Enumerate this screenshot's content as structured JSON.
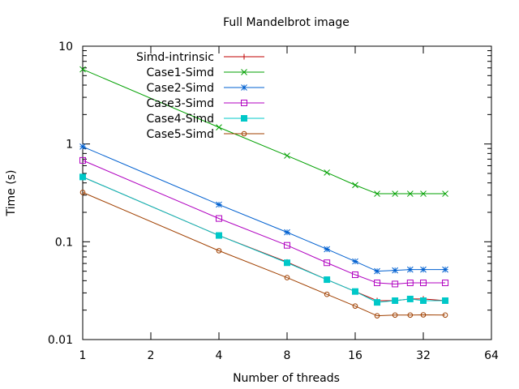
{
  "chart_data": {
    "type": "line",
    "title": "Full Mandelbrot image",
    "xlabel": "Number of threads",
    "ylabel": "Time (s)",
    "x_scale": "log2",
    "y_scale": "log10",
    "xlim": [
      1,
      64
    ],
    "ylim": [
      0.01,
      10
    ],
    "x_ticks": [
      1,
      2,
      4,
      8,
      16,
      32,
      64
    ],
    "x_tick_labels": [
      "1",
      "2",
      "4",
      "8",
      "16",
      "32",
      "64"
    ],
    "y_ticks": [
      0.01,
      0.1,
      1,
      10
    ],
    "y_tick_labels": [
      "0.01",
      "0.1",
      "1",
      "10"
    ],
    "legend_position": "top-left",
    "grid": false,
    "x": [
      1,
      4,
      8,
      12,
      16,
      20,
      24,
      28,
      32,
      40
    ],
    "series": [
      {
        "name": "Simd-intrinsic",
        "color": "#c00000",
        "marker": "plus",
        "values": [
          0.46,
          0.116,
          0.062,
          0.041,
          0.031,
          0.025,
          0.025,
          0.026,
          0.026,
          0.025
        ]
      },
      {
        "name": "Case1-Simd",
        "color": "#00a000",
        "marker": "cross",
        "values": [
          5.8,
          1.48,
          0.76,
          0.51,
          0.38,
          0.31,
          0.31,
          0.31,
          0.31,
          0.31
        ]
      },
      {
        "name": "Case2-Simd",
        "color": "#0060d0",
        "marker": "star",
        "values": [
          0.94,
          0.24,
          0.125,
          0.084,
          0.063,
          0.05,
          0.051,
          0.052,
          0.052,
          0.052
        ]
      },
      {
        "name": "Case3-Simd",
        "color": "#b000c0",
        "marker": "square-open",
        "values": [
          0.68,
          0.173,
          0.092,
          0.061,
          0.046,
          0.038,
          0.037,
          0.038,
          0.038,
          0.038
        ]
      },
      {
        "name": "Case4-Simd",
        "color": "#00c8c8",
        "marker": "square-filled",
        "values": [
          0.46,
          0.116,
          0.061,
          0.041,
          0.031,
          0.024,
          0.025,
          0.026,
          0.025,
          0.025
        ]
      },
      {
        "name": "Case5-Simd",
        "color": "#a04000",
        "marker": "circle-open",
        "values": [
          0.32,
          0.081,
          0.043,
          0.029,
          0.022,
          0.0175,
          0.0178,
          0.0178,
          0.0179,
          0.0178
        ]
      }
    ]
  }
}
